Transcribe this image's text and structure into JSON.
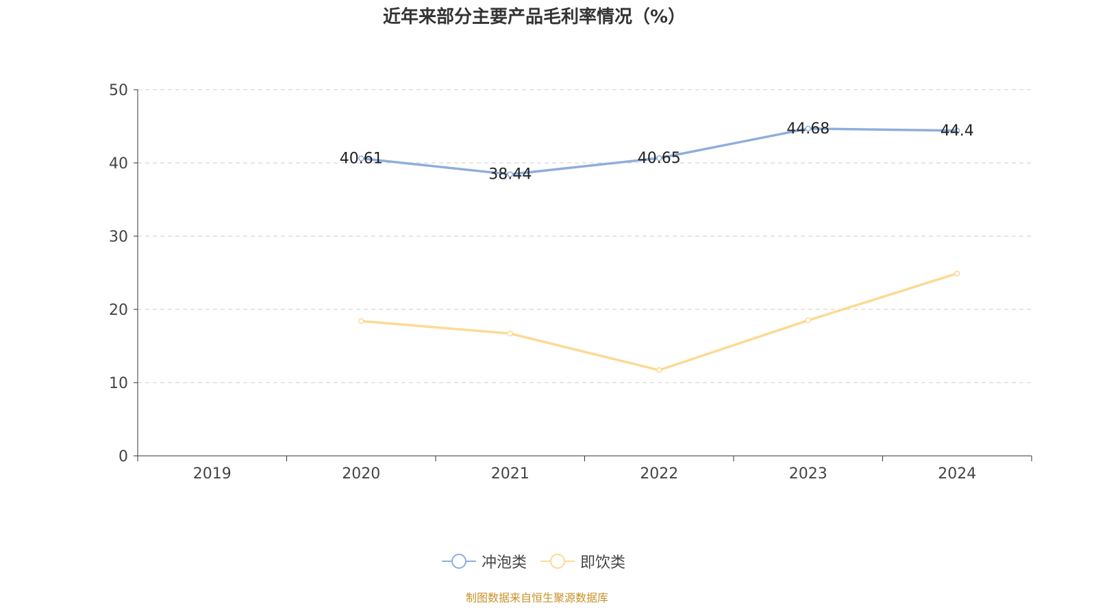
{
  "title": "近年来部分主要产品毛利率情况（%）",
  "source": "制图数据来自恒生聚源数据库",
  "chart_data": {
    "type": "line",
    "title": "近年来部分主要产品毛利率情况（%）",
    "categories": [
      "2019",
      "2020",
      "2021",
      "2022",
      "2023",
      "2024"
    ],
    "ylim": [
      0,
      50
    ],
    "yticks": [
      0,
      10,
      20,
      30,
      40,
      50
    ],
    "grid": true,
    "legend_position": "bottom",
    "series": [
      {
        "name": "冲泡类",
        "color": "#8eaedb",
        "values": [
          null,
          40.61,
          38.44,
          40.65,
          44.68,
          44.4
        ],
        "labels": [
          "",
          "40.61",
          "38.44",
          "40.65",
          "44.68",
          "44.4"
        ]
      },
      {
        "name": "即饮类",
        "color": "#fdd993",
        "values": [
          null,
          18.4,
          16.7,
          11.7,
          18.5,
          24.9
        ]
      }
    ]
  }
}
